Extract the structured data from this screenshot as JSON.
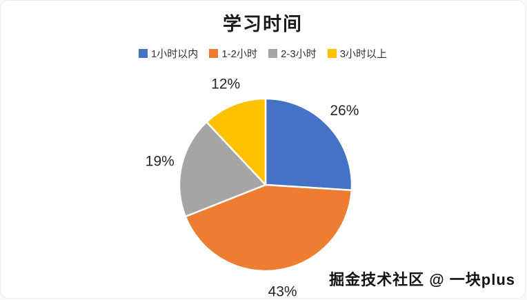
{
  "chart_data": {
    "type": "pie",
    "title": "学习时间",
    "categories": [
      "1小时以内",
      "1-2小时",
      "2-3小时",
      "3小时以上"
    ],
    "values": [
      26,
      43,
      19,
      12
    ],
    "labels": [
      "26%",
      "43%",
      "19%",
      "12%"
    ],
    "colors": [
      "#4472C4",
      "#ED7D31",
      "#A5A5A5",
      "#FFC000"
    ],
    "legend_position": "top",
    "start_angle": 0,
    "direction": "clockwise",
    "slice_border_color": "#FFFFFF"
  },
  "watermark": "掘金技术社区 @ 一块plus"
}
